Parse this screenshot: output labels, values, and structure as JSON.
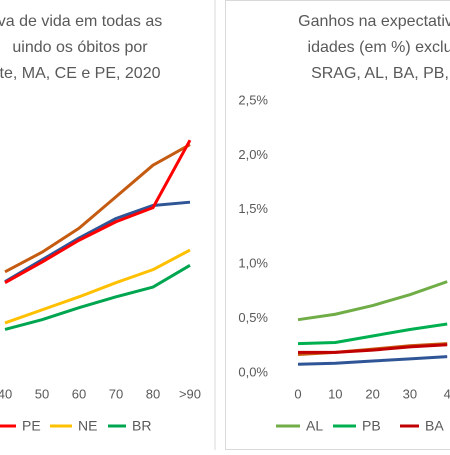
{
  "chart_data": [
    {
      "type": "line",
      "title": [
        "va de vida em todas as",
        "uindo os óbitos por",
        "te, MA, CE e PE, 2020"
      ],
      "categories": [
        "40",
        "50",
        "60",
        "70",
        "80",
        ">90"
      ],
      "ylim": [
        0,
        2.5
      ],
      "series": [
        {
          "color": "#c55a11",
          "values": [
            0.93,
            1.11,
            1.33,
            1.62,
            1.91,
            2.1
          ]
        },
        {
          "color": "#2f5597",
          "values": [
            0.84,
            1.04,
            1.24,
            1.42,
            1.54,
            1.57
          ]
        },
        {
          "name": "PE",
          "color": "#ff0000",
          "values": [
            0.83,
            1.02,
            1.22,
            1.39,
            1.52,
            2.14
          ]
        },
        {
          "name": "NE",
          "color": "#ffc000",
          "values": [
            0.46,
            0.58,
            0.7,
            0.83,
            0.95,
            1.13
          ]
        },
        {
          "name": "BR",
          "color": "#00a550",
          "values": [
            0.4,
            0.49,
            0.6,
            0.7,
            0.79,
            0.99
          ]
        }
      ]
    },
    {
      "type": "line",
      "title": [
        "Ganhos na expectativa",
        "idades (em %) exclu",
        "SRAG, AL, BA, PB,"
      ],
      "categories": [
        "0",
        "10",
        "20",
        "30",
        "4"
      ],
      "ylim": [
        0,
        2.5
      ],
      "yticks": [
        {
          "value": 0,
          "label": "0,0%"
        },
        {
          "value": 0.5,
          "label": "0,5%"
        },
        {
          "value": 1,
          "label": "1,0%"
        },
        {
          "value": 1.5,
          "label": "1,5%"
        },
        {
          "value": 2,
          "label": "2,0%"
        },
        {
          "value": 2.5,
          "label": "2,5%"
        }
      ],
      "series": [
        {
          "name": "AL",
          "color": "#70ad47",
          "values": [
            0.49,
            0.54,
            0.62,
            0.72,
            0.84
          ]
        },
        {
          "name": "PB",
          "color": "#00b050",
          "values": [
            0.27,
            0.28,
            0.34,
            0.4,
            0.45
          ]
        },
        {
          "color": "#c55a11",
          "values": [
            0.17,
            0.19,
            0.22,
            0.25,
            0.27
          ]
        },
        {
          "name": "BA",
          "color": "#c00000",
          "values": [
            0.19,
            0.19,
            0.21,
            0.24,
            0.26
          ]
        },
        {
          "color": "#2f5597",
          "values": [
            0.08,
            0.09,
            0.11,
            0.13,
            0.15
          ]
        }
      ]
    }
  ]
}
